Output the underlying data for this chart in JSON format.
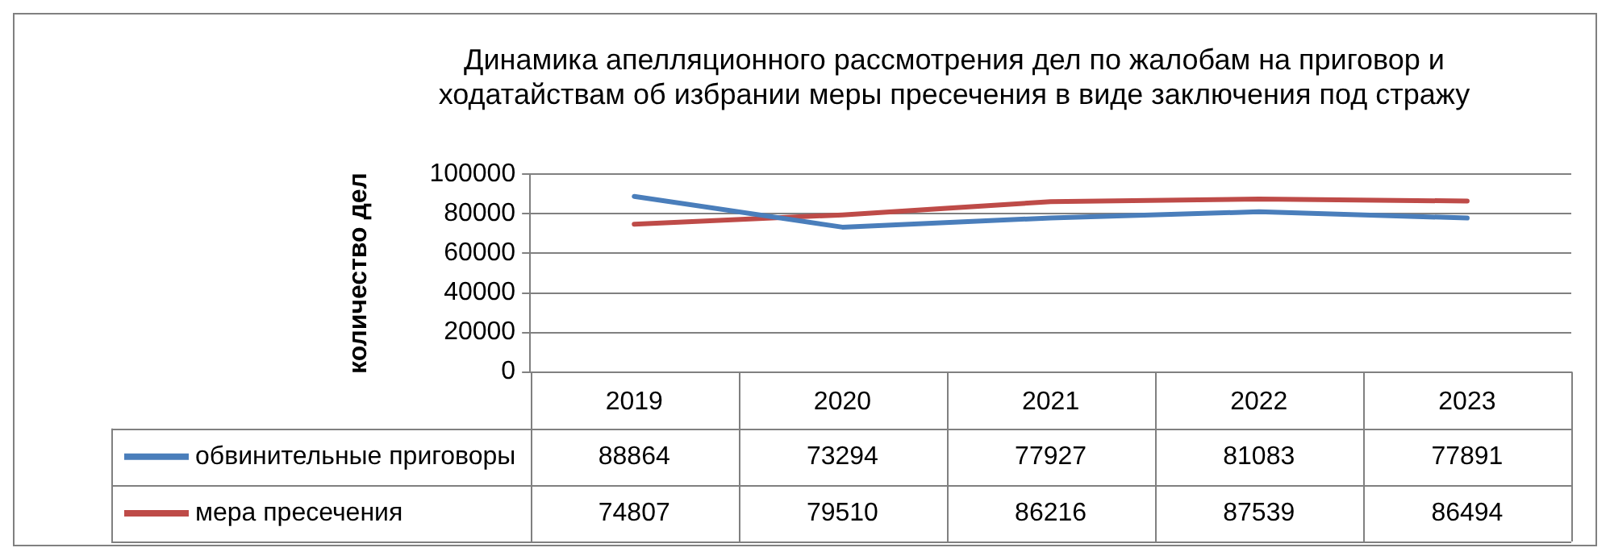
{
  "chart_data": {
    "type": "line",
    "title": "Динамика апелляционного рассмотрения дел по жалобам на приговор и\nходатайствам об избрании меры пресечения в виде заключения под стражу",
    "ylabel": "количество дел",
    "categories": [
      "2019",
      "2020",
      "2021",
      "2022",
      "2023"
    ],
    "series": [
      {
        "name": "обвинительные приговоры",
        "color": "#4a7ebb",
        "values": [
          88864,
          73294,
          77927,
          81083,
          77891
        ]
      },
      {
        "name": "мера пресечения",
        "color": "#be4b48",
        "values": [
          74807,
          79510,
          86216,
          87539,
          86494
        ]
      }
    ],
    "ylim": [
      0,
      100000
    ],
    "yticks": [
      0,
      20000,
      40000,
      60000,
      80000,
      100000
    ],
    "grid": "y",
    "legend": "bottom left",
    "data_labels": true,
    "marker": "none",
    "line_style": "solid"
  }
}
